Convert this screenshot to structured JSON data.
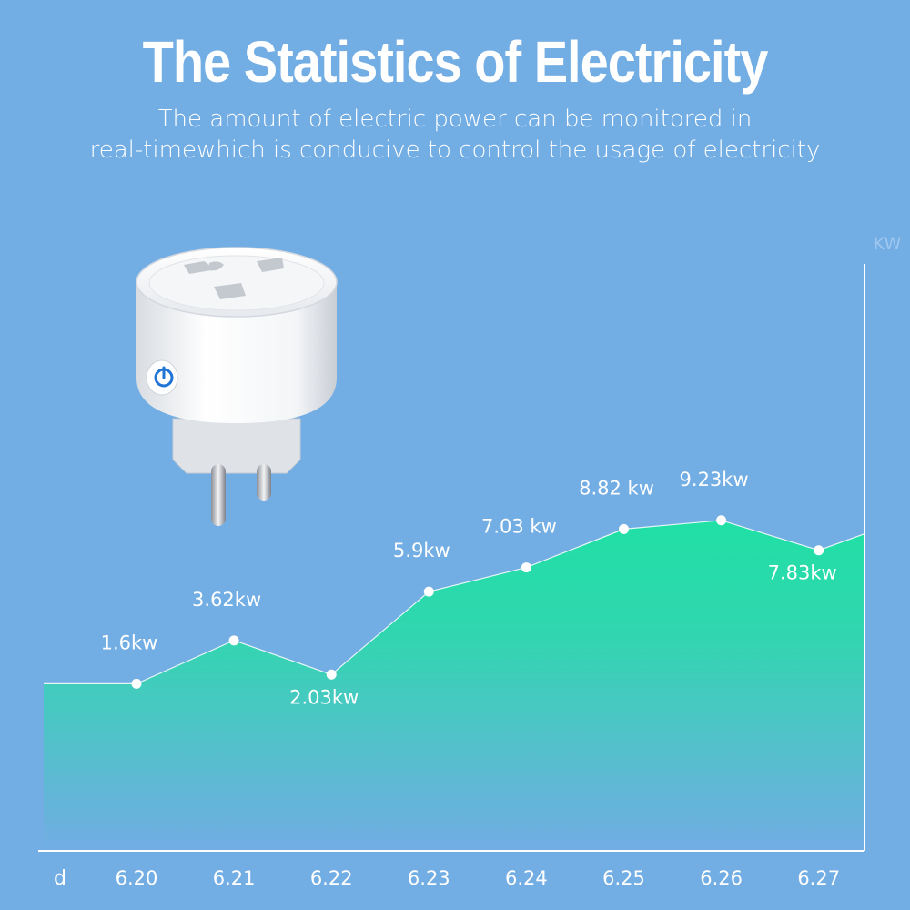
{
  "title": "The Statistics of Electricity",
  "subtitle_lines": [
    "The amount of electric power can be monitored in",
    "real-timewhich is conducive to control the usage of electricity"
  ],
  "colors": {
    "background": "#72ade4",
    "area_top": "#1fe0a5",
    "area_bottom": "#72ade4",
    "line": "#ffffff"
  },
  "product_icon": "smart-plug-icon",
  "chart_data": {
    "type": "area",
    "xlabel": "d",
    "ylabel": "KW",
    "categories": [
      "6.20",
      "6.21",
      "6.22",
      "6.23",
      "6.24",
      "6.25",
      "6.26",
      "6.27"
    ],
    "values": [
      1.6,
      3.62,
      2.03,
      5.9,
      7.03,
      8.82,
      9.23,
      7.83
    ],
    "data_labels": [
      "1.6kw",
      "3.62kw",
      "2.03kw",
      "5.9kw",
      "7.03 kw",
      "8.82 kw",
      "9.23kw",
      "7.83kw"
    ],
    "ylim": [
      -6.2,
      21.2
    ],
    "grid": false,
    "legend": "none"
  }
}
